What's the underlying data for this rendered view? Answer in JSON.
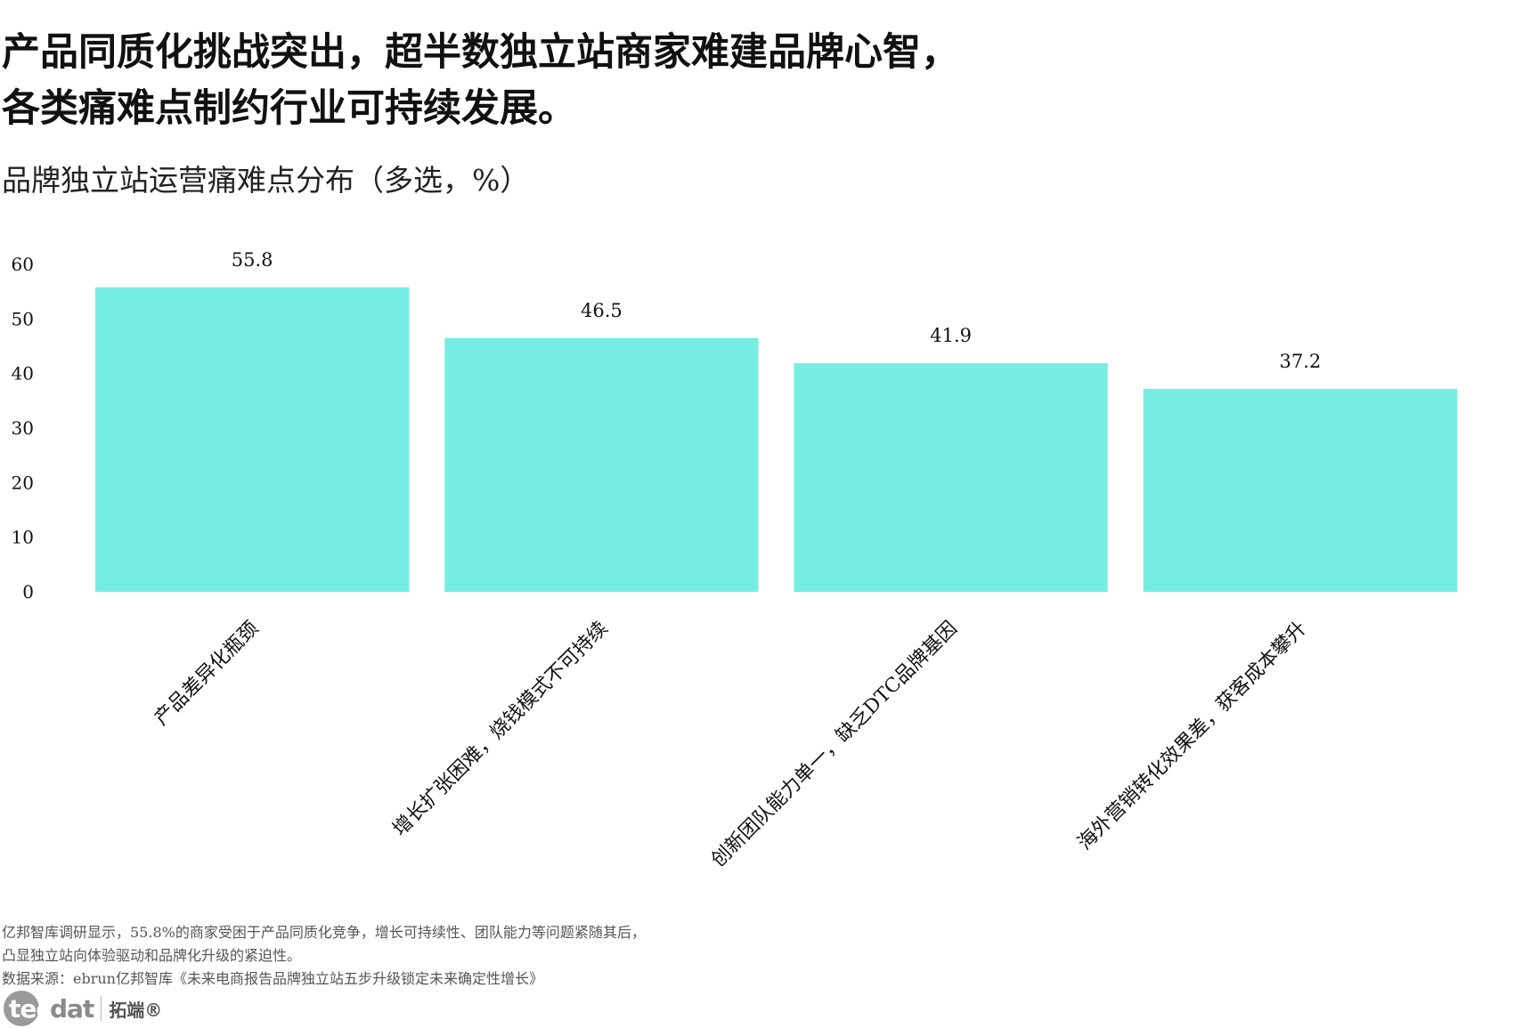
{
  "title_lines": [
    "产品同质化挑战突出，超半数独立站商家难建品牌心智，",
    "各类痛难点制约行业可持续发展。"
  ],
  "subtitle": "品牌独立站运营痛难点分布（多选，%）",
  "colors": {
    "bar": "#76ede3",
    "text": "#111111",
    "footer": "#555555"
  },
  "chart_data": {
    "type": "bar",
    "categories": [
      "产品差异化瓶颈",
      "增长扩张困难，烧钱模式不可持续",
      "创新团队能力单一，缺乏DTC品牌基因",
      "海外营销转化效果差，获客成本攀升"
    ],
    "values": [
      55.8,
      46.5,
      41.9,
      37.2
    ],
    "value_labels": [
      "55.8",
      "46.5",
      "41.9",
      "37.2"
    ],
    "yticks": [
      0,
      10,
      20,
      30,
      40,
      50,
      60
    ],
    "ylim": [
      0,
      60
    ],
    "grid": false,
    "legend": "none"
  },
  "footer": {
    "lines": [
      "亿邦智库调研显示，55.8%的商家受困于产品同质化竞争，增长可持续性、团队能力等问题紧随其后，",
      "凸显独立站向体验驱动和品牌化升级的紧迫性。",
      "数据来源：ebrun亿邦智库《未来电商报告品牌独立站五步升级锁定未来确定性增长》"
    ]
  },
  "logo": {
    "part1": "tec",
    "part2": "dat",
    "cn": "拓端®"
  }
}
